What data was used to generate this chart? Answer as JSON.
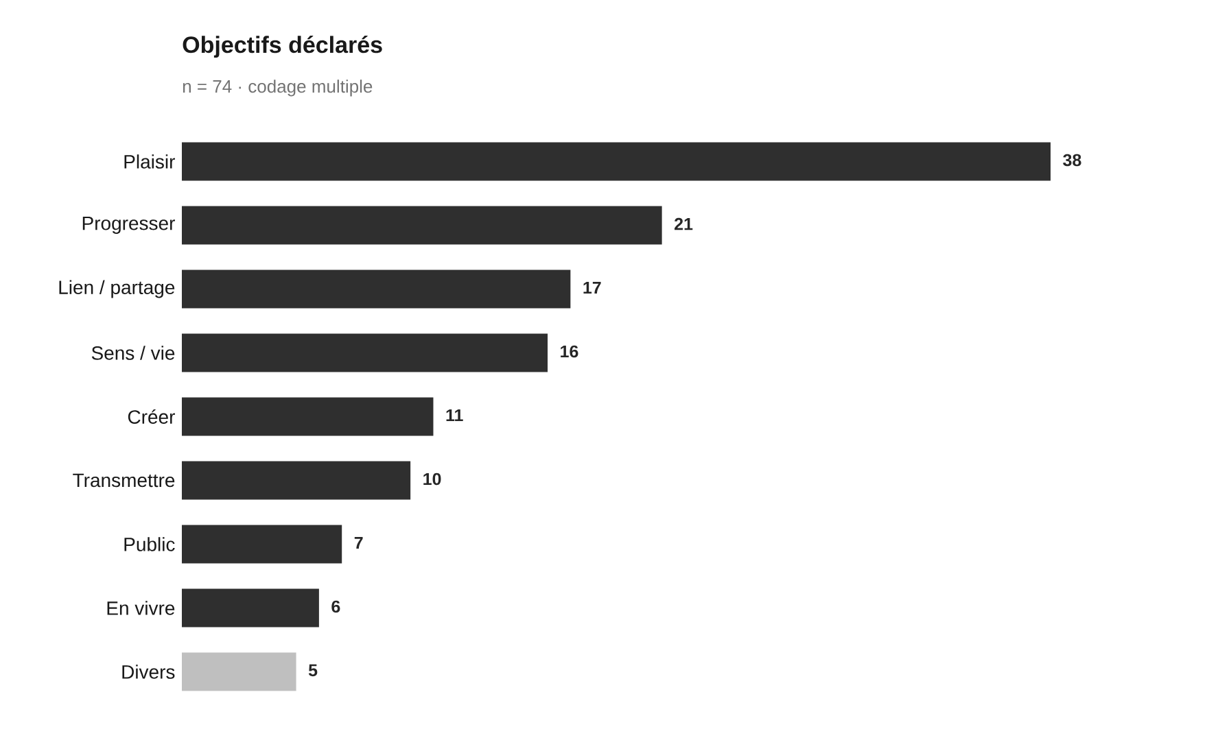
{
  "chart_data": {
    "type": "bar",
    "orientation": "horizontal",
    "title": "Objectifs déclarés",
    "subtitle": "n = 74 · codage multiple",
    "categories": [
      "Plaisir",
      "Progresser",
      "Lien / partage",
      "Sens / vie",
      "Créer",
      "Transmettre",
      "Public",
      "En vivre",
      "Divers"
    ],
    "values": [
      38,
      21,
      17,
      16,
      11,
      10,
      7,
      6,
      5
    ],
    "colors": [
      "#2f2f2f",
      "#2f2f2f",
      "#2f2f2f",
      "#2f2f2f",
      "#2f2f2f",
      "#2f2f2f",
      "#2f2f2f",
      "#2f2f2f",
      "#bfbfbf"
    ],
    "data_labels": true
  }
}
